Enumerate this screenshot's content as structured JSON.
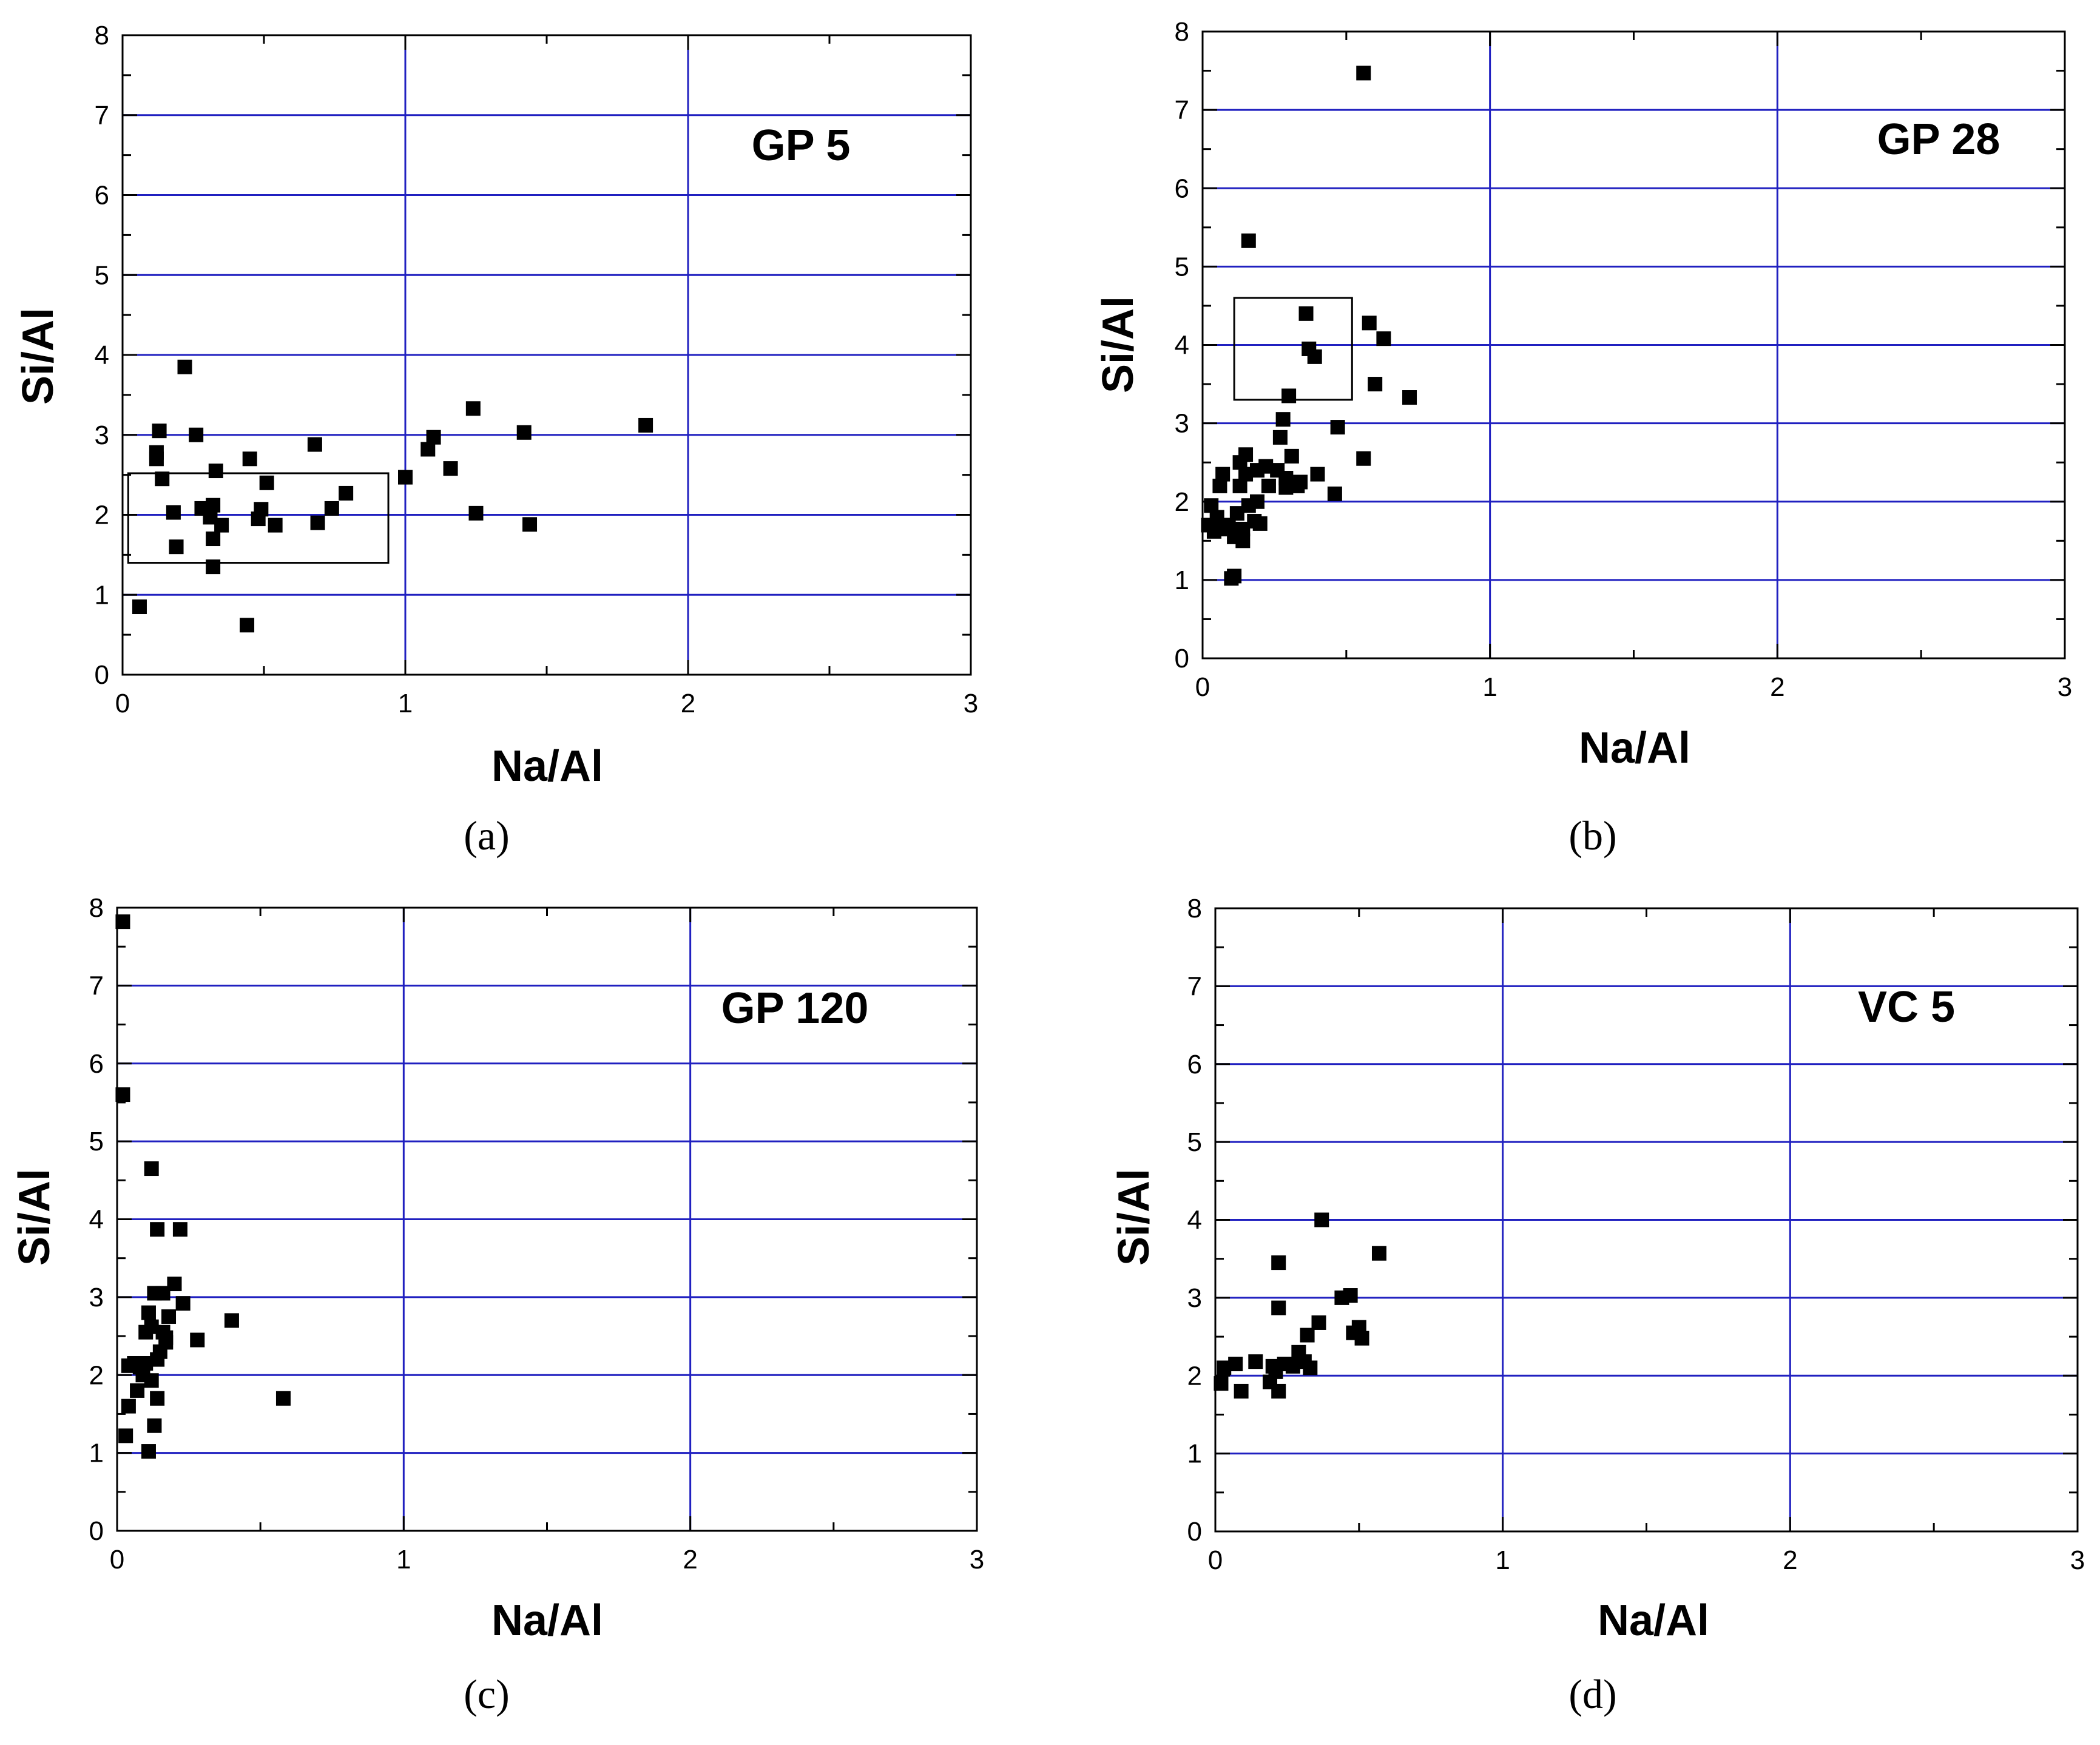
{
  "figure": {
    "captions": [
      "(a)",
      "(b)",
      "(c)",
      "(d)"
    ]
  },
  "chart_data": [
    {
      "type": "scatter",
      "title": "GP 5",
      "caption": "(a)",
      "xlabel": "Na/Al",
      "ylabel": "Si/Al",
      "xlim": [
        0,
        3
      ],
      "ylim": [
        0,
        8
      ],
      "x_ticks": [
        "0",
        "1",
        "2",
        "3"
      ],
      "y_ticks": [
        "0",
        "1",
        "2",
        "3",
        "4",
        "5",
        "6",
        "7",
        "8"
      ],
      "grid": true,
      "marker_color": "#000000",
      "grid_color": "#2020c0",
      "highlight_region": {
        "x": [
          0.02,
          0.94
        ],
        "y": [
          1.4,
          2.52
        ]
      },
      "points": [
        [
          0.06,
          0.85
        ],
        [
          0.12,
          2.78
        ],
        [
          0.12,
          2.7
        ],
        [
          0.13,
          3.05
        ],
        [
          0.14,
          2.45
        ],
        [
          0.18,
          2.03
        ],
        [
          0.19,
          1.6
        ],
        [
          0.22,
          3.85
        ],
        [
          0.26,
          3.0
        ],
        [
          0.28,
          2.08
        ],
        [
          0.31,
          1.97
        ],
        [
          0.32,
          2.12
        ],
        [
          0.32,
          1.7
        ],
        [
          0.32,
          1.35
        ],
        [
          0.33,
          2.55
        ],
        [
          0.35,
          1.87
        ],
        [
          0.44,
          0.62
        ],
        [
          0.45,
          2.7
        ],
        [
          0.48,
          1.95
        ],
        [
          0.49,
          2.07
        ],
        [
          0.51,
          2.4
        ],
        [
          0.54,
          1.87
        ],
        [
          0.68,
          2.88
        ],
        [
          0.69,
          1.9
        ],
        [
          0.74,
          2.08
        ],
        [
          0.79,
          2.27
        ],
        [
          1.0,
          2.47
        ],
        [
          1.08,
          2.82
        ],
        [
          1.1,
          2.97
        ],
        [
          1.16,
          2.58
        ],
        [
          1.24,
          3.33
        ],
        [
          1.25,
          2.02
        ],
        [
          1.42,
          3.03
        ],
        [
          1.44,
          1.88
        ],
        [
          1.85,
          3.12
        ]
      ]
    },
    {
      "type": "scatter",
      "title": "GP 28",
      "caption": "(b)",
      "xlabel": "Na/Al",
      "ylabel": "Si/Al",
      "xlim": [
        0,
        3
      ],
      "ylim": [
        0,
        8
      ],
      "x_ticks": [
        "0",
        "1",
        "2",
        "3"
      ],
      "y_ticks": [
        "0",
        "1",
        "2",
        "3",
        "4",
        "5",
        "6",
        "7",
        "8"
      ],
      "grid": true,
      "marker_color": "#000000",
      "grid_color": "#2020c0",
      "highlight_region": {
        "x": [
          0.11,
          0.52
        ],
        "y": [
          3.3,
          4.6
        ]
      },
      "points": [
        [
          0.02,
          1.7
        ],
        [
          0.03,
          1.95
        ],
        [
          0.04,
          1.62
        ],
        [
          0.05,
          1.8
        ],
        [
          0.06,
          2.2
        ],
        [
          0.06,
          1.65
        ],
        [
          0.07,
          2.35
        ],
        [
          0.09,
          1.7
        ],
        [
          0.1,
          1.02
        ],
        [
          0.11,
          1.05
        ],
        [
          0.11,
          1.55
        ],
        [
          0.12,
          1.85
        ],
        [
          0.13,
          2.5
        ],
        [
          0.13,
          2.2
        ],
        [
          0.14,
          1.5
        ],
        [
          0.14,
          1.65
        ],
        [
          0.15,
          2.6
        ],
        [
          0.15,
          2.35
        ],
        [
          0.16,
          1.95
        ],
        [
          0.16,
          5.33
        ],
        [
          0.18,
          1.75
        ],
        [
          0.19,
          2.4
        ],
        [
          0.19,
          2.0
        ],
        [
          0.2,
          1.72
        ],
        [
          0.22,
          2.45
        ],
        [
          0.23,
          2.2
        ],
        [
          0.26,
          2.4
        ],
        [
          0.27,
          2.82
        ],
        [
          0.28,
          3.05
        ],
        [
          0.29,
          2.18
        ],
        [
          0.29,
          2.3
        ],
        [
          0.3,
          3.35
        ],
        [
          0.31,
          2.58
        ],
        [
          0.33,
          2.2
        ],
        [
          0.34,
          2.25
        ],
        [
          0.36,
          4.4
        ],
        [
          0.37,
          3.95
        ],
        [
          0.39,
          3.85
        ],
        [
          0.4,
          2.35
        ],
        [
          0.46,
          2.1
        ],
        [
          0.47,
          2.95
        ],
        [
          0.56,
          2.55
        ],
        [
          0.56,
          7.47
        ],
        [
          0.58,
          4.28
        ],
        [
          0.6,
          3.5
        ],
        [
          0.63,
          4.08
        ],
        [
          0.72,
          3.33
        ]
      ]
    },
    {
      "type": "scatter",
      "title": "GP 120",
      "caption": "(c)",
      "xlabel": "Na/Al",
      "ylabel": "Si/Al",
      "xlim": [
        0,
        3
      ],
      "ylim": [
        0,
        8
      ],
      "x_ticks": [
        "0",
        "1",
        "2",
        "3"
      ],
      "y_ticks": [
        "0",
        "1",
        "2",
        "3",
        "4",
        "5",
        "6",
        "7",
        "8"
      ],
      "grid": true,
      "marker_color": "#000000",
      "grid_color": "#2020c0",
      "points": [
        [
          0.02,
          7.82
        ],
        [
          0.02,
          5.6
        ],
        [
          0.03,
          1.22
        ],
        [
          0.04,
          1.6
        ],
        [
          0.04,
          2.12
        ],
        [
          0.06,
          2.15
        ],
        [
          0.07,
          1.8
        ],
        [
          0.08,
          2.1
        ],
        [
          0.09,
          2.0
        ],
        [
          0.1,
          2.15
        ],
        [
          0.1,
          2.55
        ],
        [
          0.11,
          1.02
        ],
        [
          0.11,
          2.8
        ],
        [
          0.12,
          2.62
        ],
        [
          0.12,
          4.65
        ],
        [
          0.12,
          1.93
        ],
        [
          0.13,
          1.35
        ],
        [
          0.13,
          3.05
        ],
        [
          0.14,
          2.2
        ],
        [
          0.14,
          1.7
        ],
        [
          0.14,
          3.87
        ],
        [
          0.15,
          2.3
        ],
        [
          0.16,
          2.55
        ],
        [
          0.16,
          3.05
        ],
        [
          0.17,
          2.48
        ],
        [
          0.17,
          2.42
        ],
        [
          0.18,
          2.75
        ],
        [
          0.2,
          3.17
        ],
        [
          0.22,
          3.87
        ],
        [
          0.23,
          2.92
        ],
        [
          0.28,
          2.45
        ],
        [
          0.4,
          2.7
        ],
        [
          0.58,
          1.7
        ]
      ]
    },
    {
      "type": "scatter",
      "title": "VC 5",
      "caption": "(d)",
      "xlabel": "Na/Al",
      "ylabel": "Si/Al",
      "xlim": [
        0,
        3
      ],
      "ylim": [
        0,
        8
      ],
      "x_ticks": [
        "0",
        "1",
        "2",
        "3"
      ],
      "y_ticks": [
        "0",
        "1",
        "2",
        "3",
        "4",
        "5",
        "6",
        "7",
        "8"
      ],
      "grid": true,
      "marker_color": "#000000",
      "grid_color": "#2020c0",
      "points": [
        [
          0.02,
          1.9
        ],
        [
          0.03,
          2.1
        ],
        [
          0.07,
          2.15
        ],
        [
          0.09,
          1.8
        ],
        [
          0.14,
          2.18
        ],
        [
          0.19,
          1.92
        ],
        [
          0.2,
          2.12
        ],
        [
          0.21,
          2.05
        ],
        [
          0.22,
          1.8
        ],
        [
          0.22,
          2.87
        ],
        [
          0.22,
          3.45
        ],
        [
          0.24,
          2.15
        ],
        [
          0.27,
          2.12
        ],
        [
          0.29,
          2.3
        ],
        [
          0.31,
          2.18
        ],
        [
          0.32,
          2.52
        ],
        [
          0.33,
          2.1
        ],
        [
          0.36,
          2.68
        ],
        [
          0.37,
          4.0
        ],
        [
          0.44,
          3.0
        ],
        [
          0.47,
          3.03
        ],
        [
          0.48,
          2.55
        ],
        [
          0.5,
          2.62
        ],
        [
          0.51,
          2.48
        ],
        [
          0.57,
          3.57
        ]
      ]
    }
  ]
}
